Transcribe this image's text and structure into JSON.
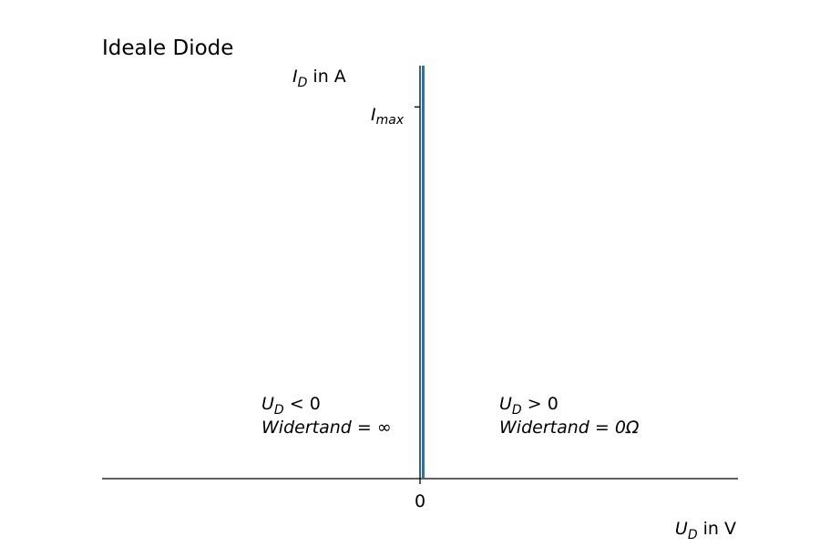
{
  "chart_data": {
    "type": "line",
    "title": "Ideale Diode",
    "x_axis": {
      "symbol": "U",
      "subscript": "D",
      "unit_text": " in V",
      "ticks": [
        {
          "value": 0,
          "label": "0"
        }
      ]
    },
    "y_axis": {
      "symbol": "I",
      "subscript": "D",
      "unit_text": " in A",
      "ticks": [
        {
          "value": 0.9,
          "symbol": "I",
          "subscript": "max"
        }
      ]
    },
    "xlim": [
      -1,
      1
    ],
    "ylim": [
      0,
      1
    ],
    "series": [
      {
        "x": [
          0.01,
          0.01
        ],
        "y": [
          0,
          1
        ],
        "color": "#1f77b4"
      }
    ],
    "annotations": [
      {
        "id": "negative",
        "x": -0.5,
        "y": 0.2,
        "line1": {
          "symbol": "U",
          "subscript": "D",
          "rest": " < 0"
        },
        "line2": "Widertand = ∞"
      },
      {
        "id": "positive",
        "x": 0.25,
        "y": 0.2,
        "line1": {
          "symbol": "U",
          "subscript": "D",
          "rest": " > 0"
        },
        "line2": "Widertand = 0Ω"
      }
    ],
    "grid": false,
    "spines": [
      "left",
      "bottom"
    ]
  }
}
